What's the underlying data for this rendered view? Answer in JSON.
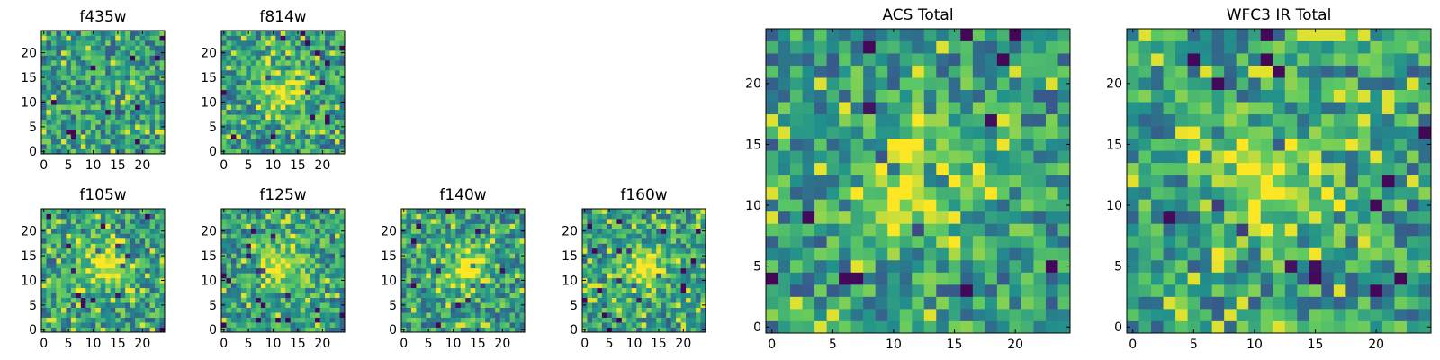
{
  "chart_data": [
    {
      "type": "heatmap",
      "title": "f435w",
      "grid_size": 25,
      "xlim": [
        0,
        24
      ],
      "ylim": [
        0,
        24
      ],
      "xticks": [
        0,
        5,
        10,
        15,
        20
      ],
      "yticks": [
        0,
        5,
        10,
        15,
        20
      ],
      "xlabel": "",
      "ylabel": "",
      "source_peak_xy": null,
      "colormap": "viridis"
    },
    {
      "type": "heatmap",
      "title": "f814w",
      "grid_size": 25,
      "xlim": [
        0,
        24
      ],
      "ylim": [
        0,
        24
      ],
      "xticks": [
        0,
        5,
        10,
        15,
        20
      ],
      "yticks": [
        0,
        5,
        10,
        15,
        20
      ],
      "xlabel": "",
      "ylabel": "",
      "source_peak_xy": [
        12,
        12
      ],
      "colormap": "viridis"
    },
    {
      "type": "heatmap",
      "title": "f105w",
      "grid_size": 25,
      "xlim": [
        0,
        24
      ],
      "ylim": [
        0,
        24
      ],
      "xticks": [
        0,
        5,
        10,
        15,
        20
      ],
      "yticks": [
        0,
        5,
        10,
        15,
        20
      ],
      "xlabel": "",
      "ylabel": "",
      "source_peak_xy": [
        12,
        13
      ],
      "colormap": "viridis"
    },
    {
      "type": "heatmap",
      "title": "f125w",
      "grid_size": 25,
      "xlim": [
        0,
        24
      ],
      "ylim": [
        0,
        24
      ],
      "xticks": [
        0,
        5,
        10,
        15,
        20
      ],
      "yticks": [
        0,
        5,
        10,
        15,
        20
      ],
      "xlabel": "",
      "ylabel": "",
      "source_peak_xy": [
        12,
        13
      ],
      "colormap": "viridis"
    },
    {
      "type": "heatmap",
      "title": "f140w",
      "grid_size": 25,
      "xlim": [
        0,
        24
      ],
      "ylim": [
        0,
        24
      ],
      "xticks": [
        0,
        5,
        10,
        15,
        20
      ],
      "yticks": [
        0,
        5,
        10,
        15,
        20
      ],
      "xlabel": "",
      "ylabel": "",
      "source_peak_xy": [
        13,
        12
      ],
      "colormap": "viridis"
    },
    {
      "type": "heatmap",
      "title": "f160w",
      "grid_size": 25,
      "xlim": [
        0,
        24
      ],
      "ylim": [
        0,
        24
      ],
      "xticks": [
        0,
        5,
        10,
        15,
        20
      ],
      "yticks": [
        0,
        5,
        10,
        15,
        20
      ],
      "xlabel": "",
      "ylabel": "",
      "source_peak_xy": [
        12,
        12
      ],
      "colormap": "viridis"
    },
    {
      "type": "heatmap",
      "title": "ACS Total",
      "grid_size": 25,
      "xlim": [
        0,
        24
      ],
      "ylim": [
        0,
        24
      ],
      "xticks": [
        0,
        5,
        10,
        15,
        20
      ],
      "yticks": [
        0,
        5,
        10,
        15,
        20
      ],
      "xlabel": "",
      "ylabel": "",
      "source_peak_xy": [
        12,
        12
      ],
      "colormap": "viridis"
    },
    {
      "type": "heatmap",
      "title": "WFC3 IR Total",
      "grid_size": 25,
      "xlim": [
        0,
        24
      ],
      "ylim": [
        0,
        24
      ],
      "xticks": [
        0,
        5,
        10,
        15,
        20
      ],
      "yticks": [
        0,
        5,
        10,
        15,
        20
      ],
      "xlabel": "",
      "ylabel": "",
      "source_peak_xy": [
        11,
        12
      ],
      "colormap": "viridis"
    }
  ],
  "colors": {
    "colormap_stops": [
      "#440154",
      "#3b528b",
      "#21918c",
      "#5ec962",
      "#fde725"
    ],
    "axis": "#000000",
    "background": "#ffffff"
  }
}
